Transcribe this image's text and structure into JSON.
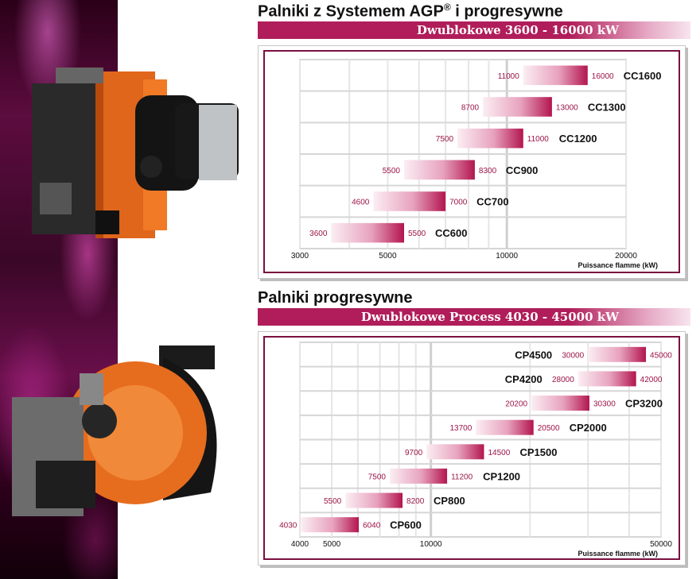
{
  "sections": [
    {
      "title_main": "Palniki z Systemem AGP",
      "title_reg": "®",
      "title_rest": " i progresywne",
      "subtitle": "Dwublokowe 3600 - 16000 kW"
    },
    {
      "title_main": "Palniki progresywne",
      "title_reg": "",
      "title_rest": "",
      "subtitle": "Dwublokowe Process 4030 - 45000 kW"
    }
  ],
  "colors": {
    "band": "#b01d5a",
    "bar_dark": "#b3154f",
    "value_text": "#9c1446",
    "grid": "#d6d6d6",
    "frame_border": "#7a1040"
  },
  "chart_data": [
    {
      "type": "bar",
      "orientation": "horizontal-range",
      "scale": "log",
      "xlabel": "Puissance flamme (kW)",
      "xlim": [
        3000,
        20000
      ],
      "xticks": [
        3000,
        5000,
        10000,
        20000
      ],
      "xtick_labels": [
        "3000",
        "5000",
        "10000",
        "20000"
      ],
      "grid": true,
      "series": [
        {
          "model": "CC1600",
          "min": 11000,
          "max": 16000,
          "min_label": "11000",
          "max_label": "16000"
        },
        {
          "model": "CC1300",
          "min": 8700,
          "max": 13000,
          "min_label": "8700",
          "max_label": "13000"
        },
        {
          "model": "CC1200",
          "min": 7500,
          "max": 11000,
          "min_label": "7500",
          "max_label": "11000"
        },
        {
          "model": "CC900",
          "min": 5500,
          "max": 8300,
          "min_label": "5500",
          "max_label": "8300"
        },
        {
          "model": "CC700",
          "min": 4600,
          "max": 7000,
          "min_label": "4600",
          "max_label": "7000"
        },
        {
          "model": "CC600",
          "min": 3600,
          "max": 5500,
          "min_label": "3600",
          "max_label": "5500"
        }
      ]
    },
    {
      "type": "bar",
      "orientation": "horizontal-range",
      "scale": "log",
      "xlabel": "Puissance flamme (kW)",
      "xlim": [
        4000,
        50000
      ],
      "xticks": [
        4000,
        5000,
        10000,
        50000
      ],
      "xtick_labels": [
        "4000",
        "5000",
        "10000",
        "50000"
      ],
      "grid": true,
      "series": [
        {
          "model": "CP4500",
          "min": 30000,
          "max": 45000,
          "min_label": "30000",
          "max_label": "45000",
          "model_side": "left"
        },
        {
          "model": "CP4200",
          "min": 28000,
          "max": 42000,
          "min_label": "28000",
          "max_label": "42000",
          "model_side": "left"
        },
        {
          "model": "CP3200",
          "min": 20200,
          "max": 30300,
          "min_label": "20200",
          "max_label": "30300",
          "model_side": "right"
        },
        {
          "model": "CP2000",
          "min": 13700,
          "max": 20500,
          "min_label": "13700",
          "max_label": "20500",
          "model_side": "right"
        },
        {
          "model": "CP1500",
          "min": 9700,
          "max": 14500,
          "min_label": "9700",
          "max_label": "14500",
          "model_side": "right"
        },
        {
          "model": "CP1200",
          "min": 7500,
          "max": 11200,
          "min_label": "7500",
          "max_label": "11200",
          "model_side": "right"
        },
        {
          "model": "CP800",
          "min": 5500,
          "max": 8200,
          "min_label": "5500",
          "max_label": "8200",
          "model_side": "right"
        },
        {
          "model": "CP600",
          "min": 4030,
          "max": 6040,
          "min_label": "4030",
          "max_label": "6040",
          "model_side": "right"
        }
      ]
    }
  ]
}
